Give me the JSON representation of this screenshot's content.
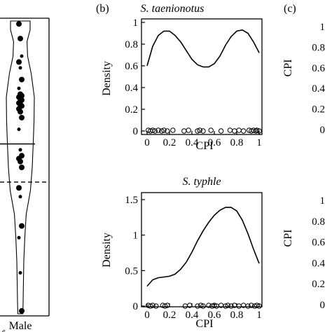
{
  "panel_labels": {
    "b": "(b)",
    "c": "(c)"
  },
  "violin_panel": {
    "group_label": "Male",
    "small_caption": "e"
  },
  "clipped_panel_c": {
    "ylabel": "CPI",
    "top_ticks": [
      "1",
      "0.8",
      "0.6",
      "0.4",
      "0.2",
      "0"
    ],
    "bottom_ticks": [
      "1",
      "0.8",
      "0.6",
      "0.4",
      "0.2",
      "0"
    ]
  },
  "chart_data": [
    {
      "type": "line",
      "title": "S. taenionotus",
      "xlabel": "CPI",
      "ylabel": "Density",
      "xlim": [
        0,
        1
      ],
      "ylim": [
        0,
        1
      ],
      "xticks": [
        "0",
        "0.2",
        "0.4",
        "0.6",
        "0.8",
        "1"
      ],
      "yticks": [
        "0",
        "0.2",
        "0.4",
        "0.6",
        "0.8",
        "1"
      ],
      "x": [
        0,
        0.05,
        0.1,
        0.15,
        0.2,
        0.25,
        0.3,
        0.35,
        0.4,
        0.45,
        0.5,
        0.55,
        0.6,
        0.65,
        0.7,
        0.75,
        0.8,
        0.85,
        0.9,
        0.95,
        1.0
      ],
      "y": [
        0.6,
        0.78,
        0.88,
        0.92,
        0.92,
        0.88,
        0.82,
        0.74,
        0.66,
        0.61,
        0.59,
        0.59,
        0.62,
        0.69,
        0.79,
        0.87,
        0.92,
        0.93,
        0.9,
        0.82,
        0.72
      ],
      "rug": [
        0.01,
        0.03,
        0.05,
        0.07,
        0.1,
        0.13,
        0.15,
        0.18,
        0.23,
        0.33,
        0.37,
        0.45,
        0.47,
        0.5,
        0.57,
        0.66,
        0.74,
        0.78,
        0.82,
        0.86,
        0.91,
        0.93,
        0.95,
        0.97,
        0.98,
        1.0
      ]
    },
    {
      "type": "line",
      "title": "S. typhle",
      "xlabel": "CPI",
      "ylabel": "Density",
      "xlim": [
        0,
        1
      ],
      "ylim": [
        0,
        1.5
      ],
      "xticks": [
        "0",
        "0.2",
        "0.4",
        "0.6",
        "0.8",
        "1"
      ],
      "yticks": [
        "0",
        "0.5",
        "1",
        "1.5"
      ],
      "x": [
        0,
        0.05,
        0.1,
        0.15,
        0.2,
        0.25,
        0.3,
        0.35,
        0.4,
        0.45,
        0.5,
        0.55,
        0.6,
        0.65,
        0.7,
        0.75,
        0.8,
        0.85,
        0.9,
        0.95,
        1.0
      ],
      "y": [
        0.28,
        0.37,
        0.4,
        0.41,
        0.42,
        0.45,
        0.52,
        0.62,
        0.76,
        0.92,
        1.06,
        1.18,
        1.28,
        1.35,
        1.39,
        1.39,
        1.34,
        1.21,
        1.02,
        0.8,
        0.6
      ],
      "rug": [
        0.01,
        0.03,
        0.05,
        0.08,
        0.14,
        0.16,
        0.18,
        0.34,
        0.38,
        0.45,
        0.48,
        0.5,
        0.55,
        0.58,
        0.6,
        0.62,
        0.66,
        0.7,
        0.72,
        0.75,
        0.78,
        0.82,
        0.86,
        0.9,
        0.93,
        0.96,
        0.98,
        1.0
      ]
    },
    {
      "type": "scatter",
      "title": "",
      "category": "Male",
      "ylim": [
        0,
        1
      ],
      "solid_line": 0.58,
      "dashed_line": 0.45,
      "violin_width": [
        [
          0.0,
          0.18
        ],
        [
          0.04,
          0.2
        ],
        [
          0.1,
          0.22
        ],
        [
          0.18,
          0.25
        ],
        [
          0.26,
          0.32
        ],
        [
          0.34,
          0.42
        ],
        [
          0.42,
          0.72
        ],
        [
          0.5,
          0.85
        ],
        [
          0.58,
          0.92
        ],
        [
          0.66,
          0.98
        ],
        [
          0.74,
          1.0
        ],
        [
          0.82,
          0.78
        ],
        [
          0.88,
          0.52
        ],
        [
          0.93,
          0.48
        ],
        [
          0.97,
          0.7
        ],
        [
          1.0,
          0.7
        ]
      ],
      "points": [
        {
          "y": 0.99,
          "size": "large"
        },
        {
          "y": 0.94,
          "size": "large"
        },
        {
          "y": 0.88,
          "size": "small"
        },
        {
          "y": 0.86,
          "size": "large"
        },
        {
          "y": 0.84,
          "size": "small"
        },
        {
          "y": 0.8,
          "size": "large"
        },
        {
          "y": 0.77,
          "size": "small"
        },
        {
          "y": 0.75,
          "size": "large"
        },
        {
          "y": 0.745,
          "size": "large"
        },
        {
          "y": 0.74,
          "size": "large"
        },
        {
          "y": 0.735,
          "size": "large"
        },
        {
          "y": 0.73,
          "size": "large"
        },
        {
          "y": 0.72,
          "size": "large"
        },
        {
          "y": 0.715,
          "size": "large"
        },
        {
          "y": 0.71,
          "size": "large"
        },
        {
          "y": 0.7,
          "size": "large"
        },
        {
          "y": 0.69,
          "size": "large"
        },
        {
          "y": 0.67,
          "size": "large"
        },
        {
          "y": 0.63,
          "size": "small"
        },
        {
          "y": 0.56,
          "size": "small"
        },
        {
          "y": 0.54,
          "size": "large"
        },
        {
          "y": 0.53,
          "size": "large"
        },
        {
          "y": 0.52,
          "size": "large"
        },
        {
          "y": 0.5,
          "size": "large"
        },
        {
          "y": 0.43,
          "size": "large"
        },
        {
          "y": 0.4,
          "size": "small"
        },
        {
          "y": 0.3,
          "size": "large"
        },
        {
          "y": 0.26,
          "size": "small"
        },
        {
          "y": 0.14,
          "size": "small"
        },
        {
          "y": 0.01,
          "size": "large"
        }
      ]
    }
  ]
}
